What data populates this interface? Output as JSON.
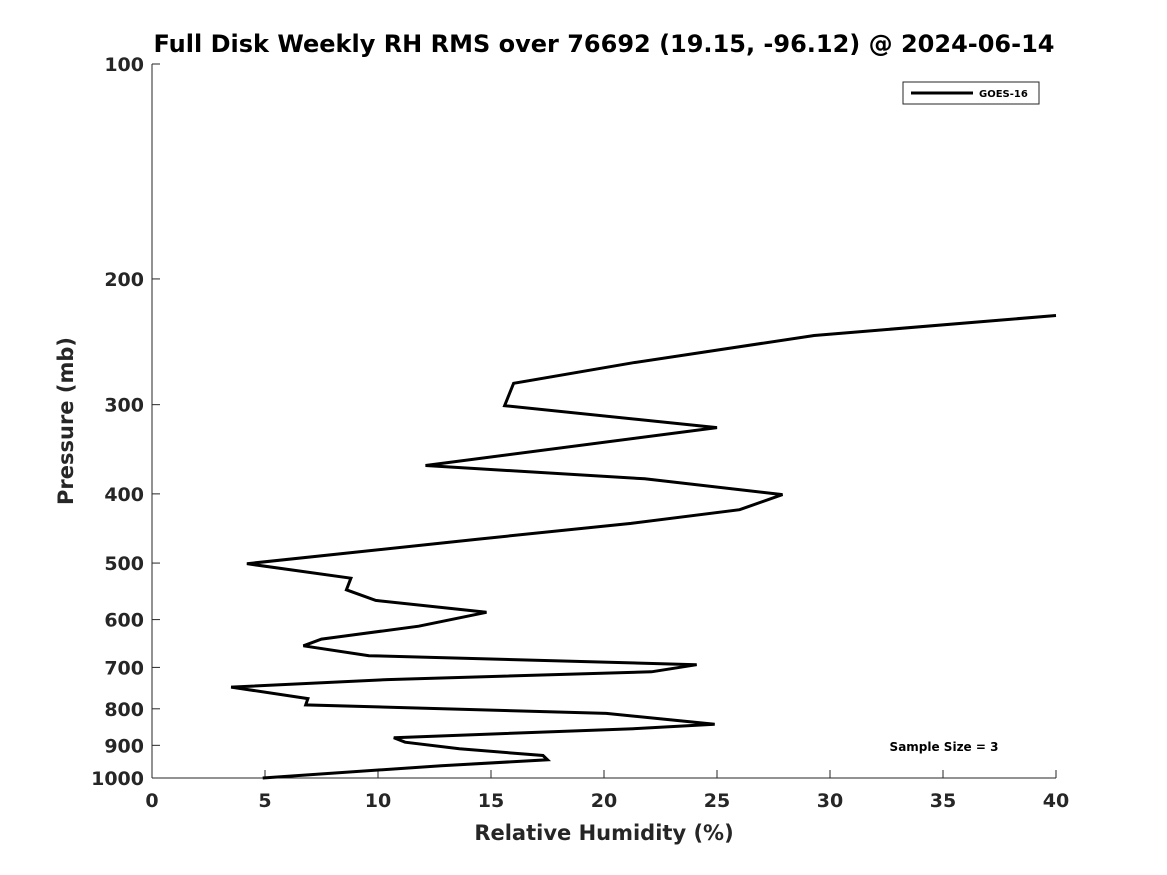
{
  "chart_data": {
    "type": "line",
    "title": "Full Disk Weekly RH RMS over 76692 (19.15, -96.12) @ 2024-06-14",
    "xlabel": "Relative Humidity (%)",
    "ylabel": "Pressure (mb)",
    "xlim": [
      0,
      40
    ],
    "ylim": [
      100,
      1000
    ],
    "y_scale": "log",
    "y_reversed": true,
    "x_ticks": [
      0,
      5,
      10,
      15,
      20,
      25,
      30,
      35,
      40
    ],
    "y_ticks": [
      100,
      200,
      300,
      400,
      500,
      600,
      700,
      800,
      900,
      1000
    ],
    "grid": false,
    "legend_position": "top-right",
    "annotation": "Sample Size = 3",
    "series": [
      {
        "name": "GOES-16",
        "color": "#000000",
        "points": [
          {
            "x": 40.0,
            "y": 225
          },
          {
            "x": 29.3,
            "y": 240
          },
          {
            "x": 21.3,
            "y": 262
          },
          {
            "x": 16.0,
            "y": 280
          },
          {
            "x": 15.6,
            "y": 301
          },
          {
            "x": 25.0,
            "y": 323
          },
          {
            "x": 12.1,
            "y": 365
          },
          {
            "x": 21.8,
            "y": 381
          },
          {
            "x": 27.9,
            "y": 401
          },
          {
            "x": 26.0,
            "y": 421
          },
          {
            "x": 21.2,
            "y": 440
          },
          {
            "x": 14.4,
            "y": 463
          },
          {
            "x": 4.2,
            "y": 501
          },
          {
            "x": 8.8,
            "y": 525
          },
          {
            "x": 8.6,
            "y": 545
          },
          {
            "x": 9.9,
            "y": 564
          },
          {
            "x": 14.8,
            "y": 586
          },
          {
            "x": 11.8,
            "y": 613
          },
          {
            "x": 7.5,
            "y": 639
          },
          {
            "x": 6.7,
            "y": 653
          },
          {
            "x": 9.6,
            "y": 674
          },
          {
            "x": 24.1,
            "y": 694
          },
          {
            "x": 22.1,
            "y": 710
          },
          {
            "x": 10.4,
            "y": 728
          },
          {
            "x": 3.5,
            "y": 746
          },
          {
            "x": 6.9,
            "y": 774
          },
          {
            "x": 6.8,
            "y": 790
          },
          {
            "x": 20.1,
            "y": 812
          },
          {
            "x": 24.9,
            "y": 841
          },
          {
            "x": 21.3,
            "y": 853
          },
          {
            "x": 10.7,
            "y": 878
          },
          {
            "x": 11.2,
            "y": 891
          },
          {
            "x": 13.6,
            "y": 910
          },
          {
            "x": 17.3,
            "y": 930
          },
          {
            "x": 17.5,
            "y": 943
          },
          {
            "x": 12.8,
            "y": 961
          },
          {
            "x": 4.9,
            "y": 1000
          }
        ]
      }
    ]
  }
}
